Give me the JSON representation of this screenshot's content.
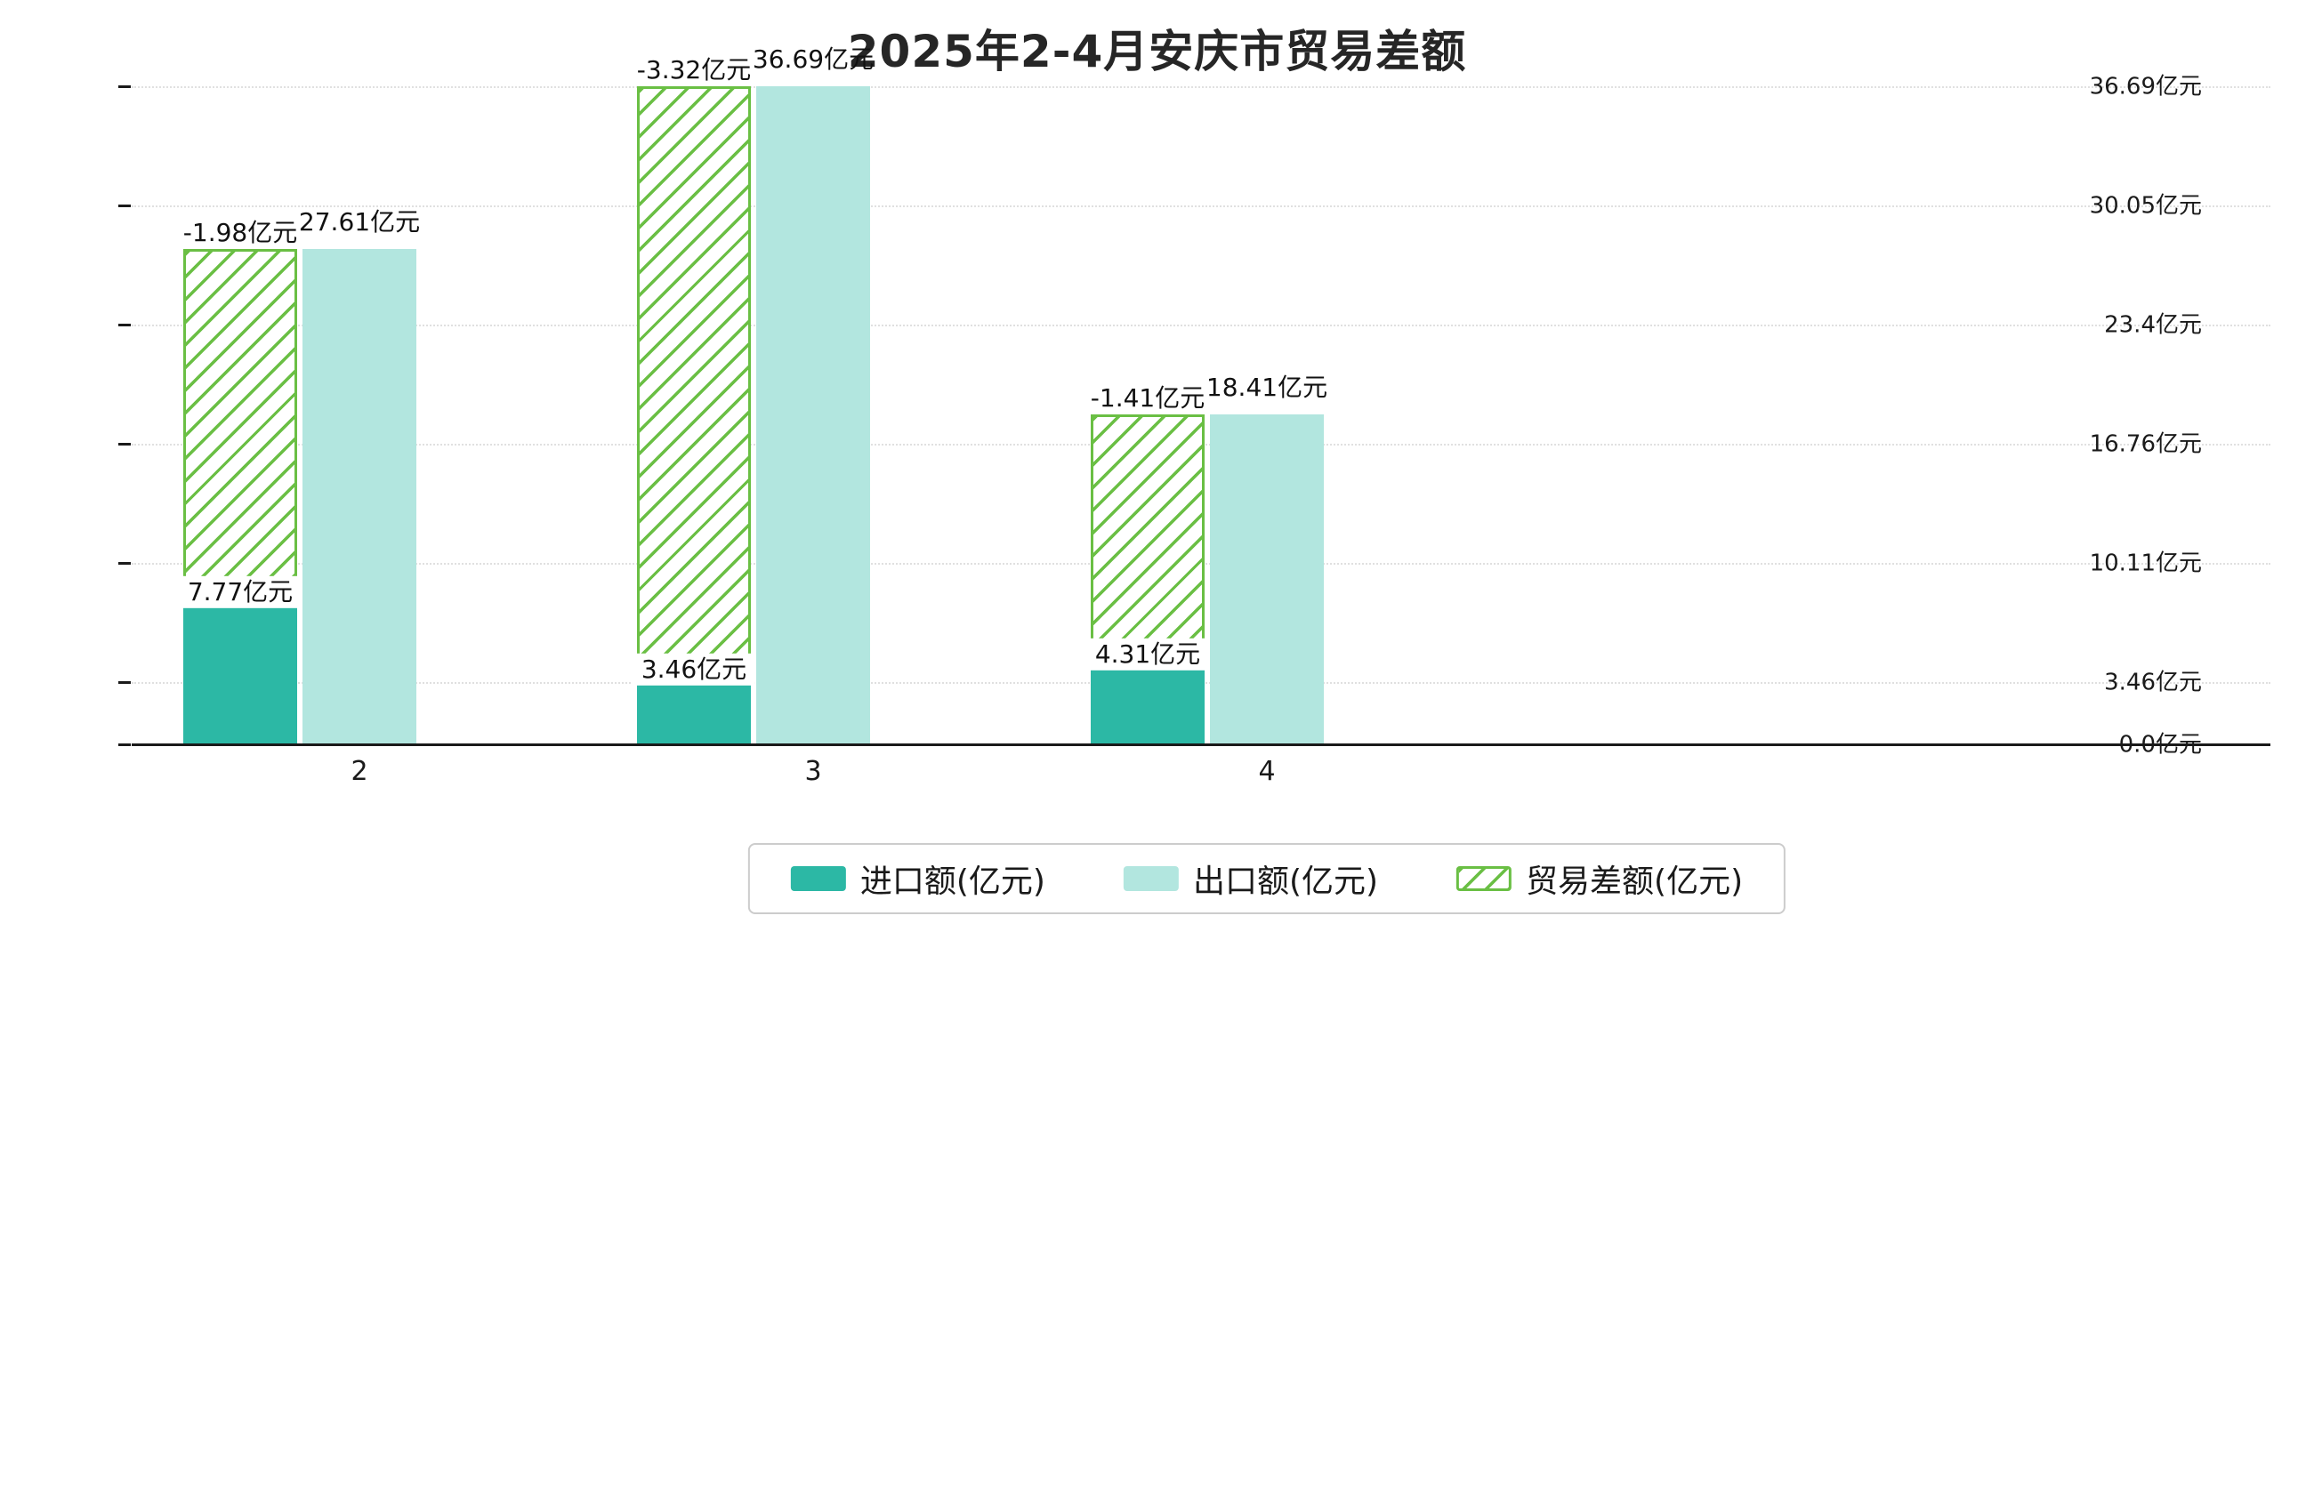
{
  "title": "2025年2-4月安庆市贸易差额",
  "chart_data": {
    "type": "bar",
    "title": "2025年2-4月安庆市贸易差额",
    "categories": [
      "2",
      "3",
      "4"
    ],
    "unit": "亿元",
    "series": [
      {
        "name": "进口额(亿元)",
        "role": "import",
        "style": "solid",
        "color": "#2cb8a5",
        "values": [
          7.77,
          3.46,
          4.31
        ],
        "value_labels": [
          "7.77亿元",
          "3.46亿元",
          "4.31亿元"
        ]
      },
      {
        "name": "出口额(亿元)",
        "role": "export",
        "style": "solid",
        "color": "#b2e6df",
        "values": [
          27.61,
          36.69,
          18.41
        ],
        "value_labels": [
          "27.61亿元",
          "36.69亿元",
          "18.41亿元"
        ]
      },
      {
        "name": "贸易差额(亿元)",
        "role": "balance",
        "style": "hatched",
        "color": "#6abf44",
        "values": [
          -1.98,
          -3.32,
          -1.41
        ],
        "value_labels": [
          "-1.98亿元",
          "-3.32亿元",
          "-1.41亿元"
        ],
        "render_note": "hatched segment stacked on top of import bar, top edge aligned with export value"
      }
    ],
    "y_axis": {
      "max": 36.69,
      "ticks": [
        {
          "value": 0.0,
          "label": "0.0亿元"
        },
        {
          "value": 3.46,
          "label": "3.46亿元"
        },
        {
          "value": 10.11,
          "label": "10.11亿元"
        },
        {
          "value": 16.76,
          "label": "16.76亿元"
        },
        {
          "value": 23.4,
          "label": "23.4亿元"
        },
        {
          "value": 30.05,
          "label": "30.05亿元"
        },
        {
          "value": 36.69,
          "label": "36.69亿元"
        }
      ]
    },
    "x_axis": {
      "tick_labels": [
        "2",
        "3",
        "4"
      ]
    },
    "grid": "horizontal-dotted",
    "legend": {
      "position": "bottom",
      "items": [
        "进口额(亿元)",
        "出口额(亿元)",
        "贸易差额(亿元)"
      ]
    }
  }
}
